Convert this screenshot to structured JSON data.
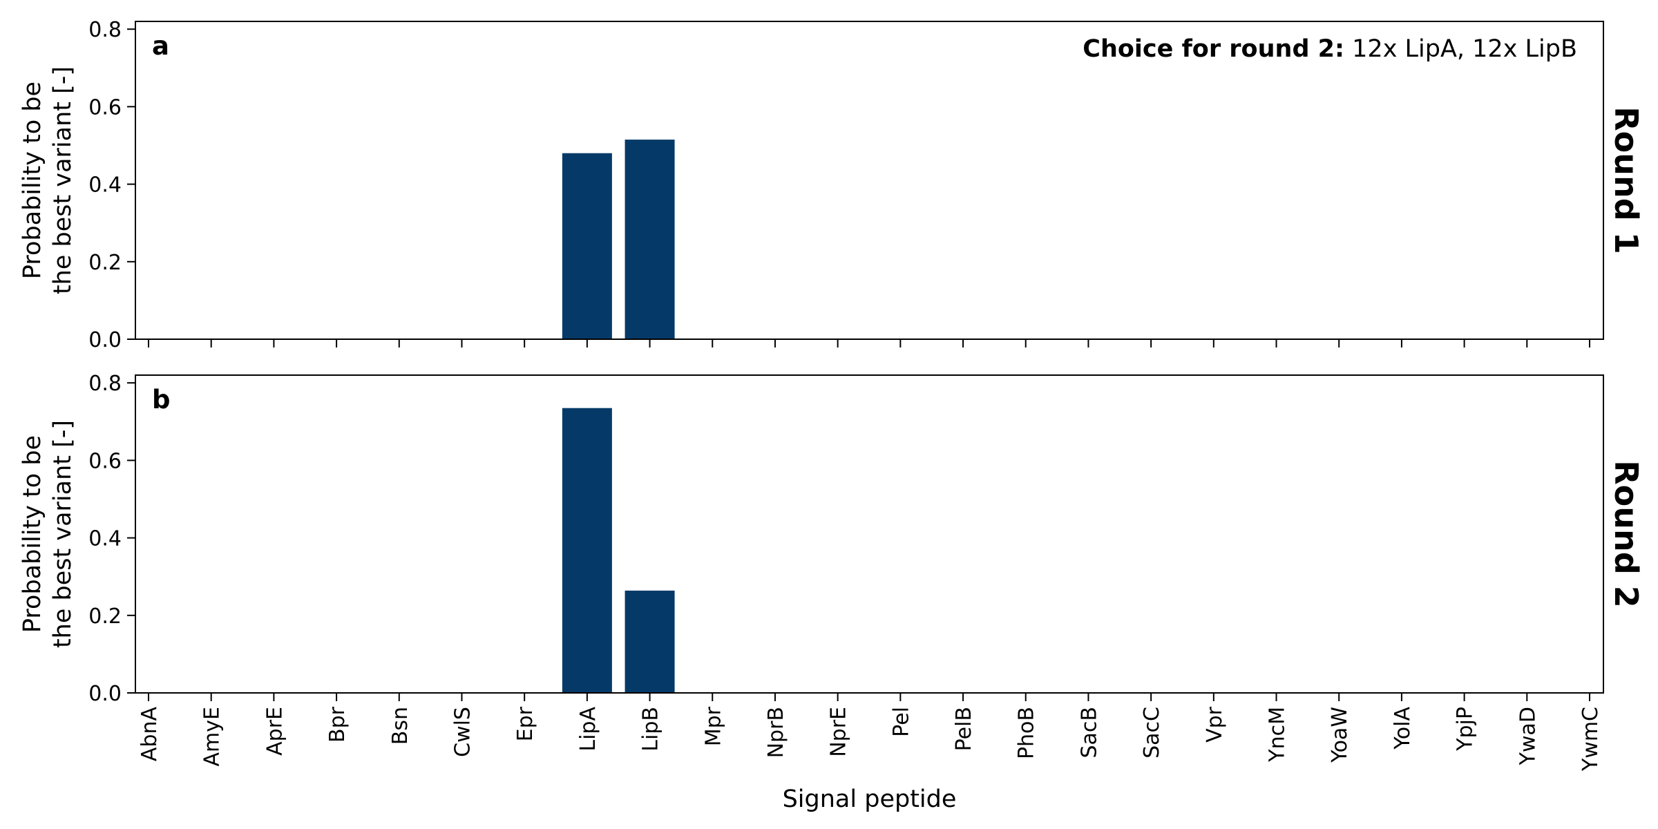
{
  "chart_data": [
    {
      "type": "bar",
      "panel_letter": "a",
      "side_label": "Round 1",
      "annotation_bold": "Choice for round 2:",
      "annotation_text": "12x LipA, 12x LipB",
      "ylabel_line1": "Probability to be",
      "ylabel_line2": "the best variant [-]",
      "xlabel": "",
      "ylim": [
        0,
        0.82
      ],
      "yticks": [
        "0.0",
        "0.2",
        "0.4",
        "0.6",
        "0.8"
      ],
      "categories": [
        "AbnA",
        "AmyE",
        "AprE",
        "Bpr",
        "Bsn",
        "CwlS",
        "Epr",
        "LipA",
        "LipB",
        "Mpr",
        "NprB",
        "NprE",
        "Pel",
        "PelB",
        "PhoB",
        "SacB",
        "SacC",
        "Vpr",
        "YncM",
        "YoaW",
        "YolA",
        "YpjP",
        "YwaD",
        "YwmC"
      ],
      "values": [
        0,
        0,
        0,
        0,
        0,
        0,
        0,
        0.48,
        0.515,
        0,
        0,
        0,
        0,
        0,
        0,
        0,
        0,
        0,
        0,
        0,
        0,
        0,
        0,
        0
      ],
      "show_xtick_labels": false,
      "bar_color": "#053a68"
    },
    {
      "type": "bar",
      "panel_letter": "b",
      "side_label": "Round 2",
      "annotation_bold": "",
      "annotation_text": "",
      "ylabel_line1": "Probability to be",
      "ylabel_line2": "the best variant [-]",
      "xlabel": "Signal peptide",
      "ylim": [
        0,
        0.82
      ],
      "yticks": [
        "0.0",
        "0.2",
        "0.4",
        "0.6",
        "0.8"
      ],
      "categories": [
        "AbnA",
        "AmyE",
        "AprE",
        "Bpr",
        "Bsn",
        "CwlS",
        "Epr",
        "LipA",
        "LipB",
        "Mpr",
        "NprB",
        "NprE",
        "Pel",
        "PelB",
        "PhoB",
        "SacB",
        "SacC",
        "Vpr",
        "YncM",
        "YoaW",
        "YolA",
        "YpjP",
        "YwaD",
        "YwmC"
      ],
      "values": [
        0,
        0,
        0,
        0,
        0,
        0,
        0,
        0.735,
        0.264,
        0,
        0,
        0,
        0,
        0,
        0,
        0,
        0,
        0,
        0,
        0,
        0,
        0,
        0,
        0
      ],
      "show_xtick_labels": true,
      "bar_color": "#053a68"
    }
  ]
}
